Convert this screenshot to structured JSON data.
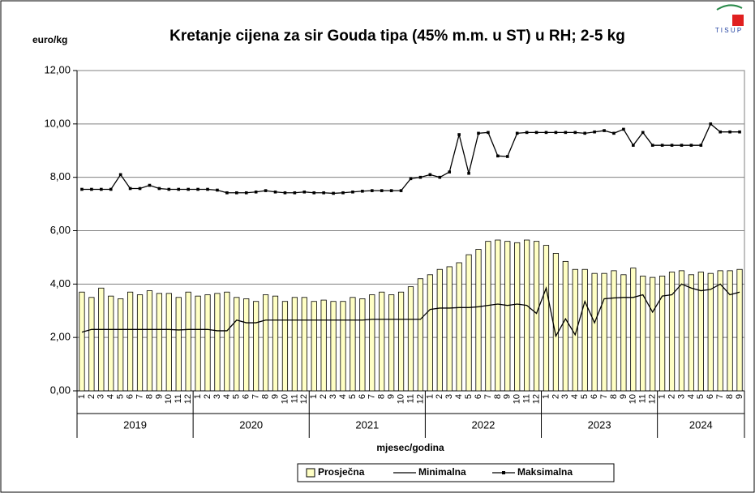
{
  "chart_data": {
    "type": "bar-line",
    "title": "Kretanje cijena za sir Gouda tipa  (45% m.m. u ST) u RH; 2-5 kg",
    "y_label": "euro/kg",
    "x_label": "mjesec/godina",
    "categories": [
      1,
      2,
      3,
      4,
      5,
      6,
      7,
      8,
      9,
      10,
      11,
      12,
      1,
      2,
      3,
      4,
      5,
      6,
      7,
      8,
      9,
      10,
      11,
      12,
      1,
      2,
      3,
      4,
      5,
      6,
      7,
      8,
      9,
      10,
      11,
      12,
      1,
      2,
      3,
      4,
      5,
      6,
      7,
      8,
      9,
      10,
      11,
      12,
      1,
      2,
      3,
      4,
      5,
      6,
      7,
      8,
      9,
      10,
      11,
      12,
      1,
      2,
      3,
      4,
      5,
      6,
      7,
      8,
      9
    ],
    "x_groups": [
      "2019",
      "2020",
      "2021",
      "2022",
      "2023",
      "2024"
    ],
    "ylim": [
      0,
      12
    ],
    "yticks": [
      {
        "value": 0,
        "label": "0,00"
      },
      {
        "value": 2,
        "label": "2,00"
      },
      {
        "value": 4,
        "label": "4,00"
      },
      {
        "value": 6,
        "label": "6,00"
      },
      {
        "value": 8,
        "label": "8,00"
      },
      {
        "value": 10,
        "label": "10,00"
      },
      {
        "value": 12,
        "label": "12,00"
      }
    ],
    "grid": true,
    "series": [
      {
        "name": "Prosječna",
        "kind": "bar",
        "color": "#ffffc4",
        "values": [
          3.7,
          3.5,
          3.85,
          3.55,
          3.45,
          3.7,
          3.6,
          3.75,
          3.65,
          3.65,
          3.5,
          3.7,
          3.55,
          3.6,
          3.65,
          3.7,
          3.5,
          3.45,
          3.35,
          3.6,
          3.55,
          3.35,
          3.5,
          3.5,
          3.35,
          3.4,
          3.35,
          3.35,
          3.5,
          3.45,
          3.6,
          3.7,
          3.6,
          3.7,
          3.9,
          4.2,
          4.35,
          4.55,
          4.65,
          4.8,
          5.1,
          5.3,
          5.6,
          5.65,
          5.6,
          5.55,
          5.65,
          5.6,
          5.45,
          5.15,
          4.85,
          4.55,
          4.55,
          4.4,
          4.4,
          4.5,
          4.35,
          4.6,
          4.3,
          4.25,
          4.3,
          4.45,
          4.5,
          4.35,
          4.45,
          4.4,
          4.5,
          4.5,
          4.55
        ]
      },
      {
        "name": "Minimalna",
        "kind": "line",
        "color": "#000000",
        "values": [
          2.2,
          2.3,
          2.3,
          2.3,
          2.3,
          2.3,
          2.3,
          2.3,
          2.3,
          2.3,
          2.28,
          2.3,
          2.3,
          2.3,
          2.25,
          2.25,
          2.65,
          2.55,
          2.55,
          2.65,
          2.65,
          2.65,
          2.65,
          2.65,
          2.65,
          2.65,
          2.65,
          2.65,
          2.65,
          2.65,
          2.68,
          2.68,
          2.68,
          2.68,
          2.68,
          2.68,
          3.05,
          3.1,
          3.1,
          3.12,
          3.12,
          3.15,
          3.2,
          3.25,
          3.2,
          3.25,
          3.2,
          2.9,
          3.85,
          2.05,
          2.7,
          2.1,
          3.35,
          2.55,
          3.45,
          3.48,
          3.5,
          3.5,
          3.6,
          2.95,
          3.55,
          3.6,
          4.0,
          3.85,
          3.75,
          3.8,
          4.0,
          3.6,
          3.7
        ]
      },
      {
        "name": "Maksimalna",
        "kind": "line-marker",
        "color": "#000000",
        "values": [
          7.55,
          7.55,
          7.55,
          7.55,
          8.1,
          7.58,
          7.58,
          7.7,
          7.58,
          7.55,
          7.55,
          7.55,
          7.55,
          7.55,
          7.52,
          7.42,
          7.42,
          7.42,
          7.45,
          7.5,
          7.45,
          7.42,
          7.42,
          7.45,
          7.42,
          7.42,
          7.4,
          7.42,
          7.45,
          7.48,
          7.5,
          7.5,
          7.5,
          7.5,
          7.95,
          8.0,
          8.1,
          8.0,
          8.2,
          9.6,
          8.15,
          9.65,
          9.68,
          8.8,
          8.78,
          9.65,
          9.68,
          9.68,
          9.68,
          9.68,
          9.68,
          9.68,
          9.65,
          9.7,
          9.75,
          9.65,
          9.8,
          9.2,
          9.68,
          9.2,
          9.2,
          9.2,
          9.2,
          9.2,
          9.2,
          10.0,
          9.7,
          9.7,
          9.7
        ]
      }
    ]
  }
}
